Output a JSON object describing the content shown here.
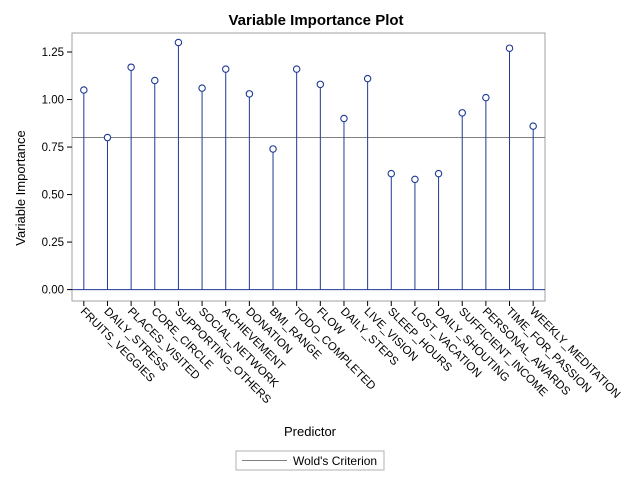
{
  "chart_data": {
    "type": "needle",
    "title": "Variable Importance Plot",
    "xlabel": "Predictor",
    "ylabel": "Variable Importance",
    "ylim": [
      -0.06,
      1.35
    ],
    "yticks": [
      "0.00",
      "0.25",
      "0.50",
      "0.75",
      "1.00",
      "1.25"
    ],
    "categories": [
      "FRUITS_VEGGIES",
      "DAILY_STRESS",
      "PLACES_VISITED",
      "CORE_CIRCLE",
      "SUPPORTING_OTHERS",
      "SOCIAL_NETWORK",
      "ACHIEVEMENT",
      "DONATION",
      "BMI_RANGE",
      "TODO_COMPLETED",
      "FLOW",
      "DAILY_STEPS",
      "LIVE_VISION",
      "SLEEP_HOURS",
      "LOST_VACATION",
      "DAILY_SHOUTING",
      "SUFFICIENT_INCOME",
      "PERSONAL_AWARDS",
      "TIME_FOR_PASSION",
      "WEEKLY_MEDITATION"
    ],
    "values": [
      1.05,
      0.8,
      1.17,
      1.1,
      1.3,
      1.06,
      1.16,
      1.03,
      0.74,
      1.16,
      1.08,
      0.9,
      1.11,
      0.61,
      0.58,
      0.61,
      0.93,
      1.01,
      1.27,
      0.86
    ],
    "reference_line": {
      "name": "Wold's Criterion",
      "y": 0.8
    },
    "legend": {
      "position": "bottom",
      "entries": [
        "Wold's Criterion"
      ]
    },
    "colors": {
      "needle": "#1f3a93",
      "reference": "#808080",
      "frame": "#a0a0a0"
    }
  }
}
